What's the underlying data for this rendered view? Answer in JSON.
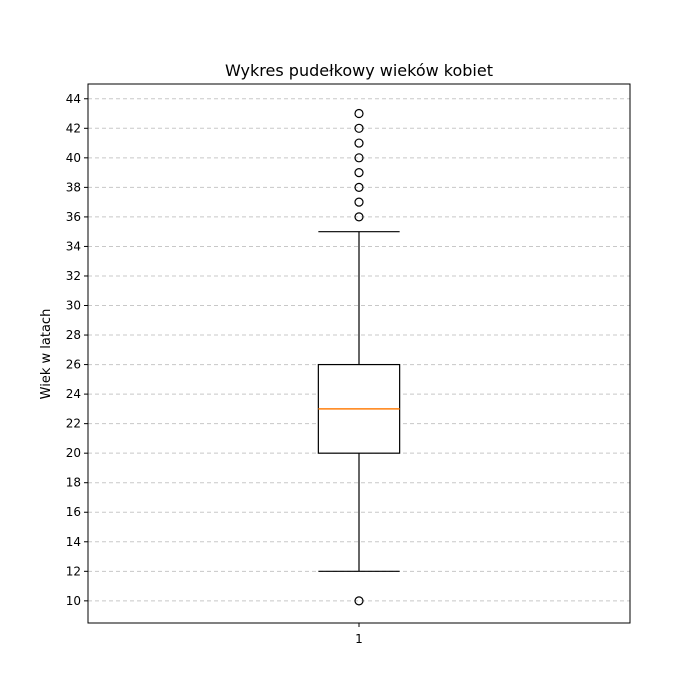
{
  "chart_data": {
    "type": "box",
    "title": "Wykres pudełkowy wieków kobiet",
    "xlabel": "",
    "ylabel": "Wiek w latach",
    "categories": [
      "1"
    ],
    "ylim": [
      8.5,
      45
    ],
    "yticks": [
      10,
      12,
      14,
      16,
      18,
      20,
      22,
      24,
      26,
      28,
      30,
      32,
      34,
      36,
      38,
      40,
      42,
      44
    ],
    "grid": {
      "axis": "y",
      "style": "dashed"
    },
    "boxes": [
      {
        "category": "1",
        "whisker_low": 12,
        "q1": 20,
        "median": 23,
        "q3": 26,
        "whisker_high": 35,
        "outliers": [
          10,
          36,
          37,
          38,
          39,
          40,
          41,
          42,
          43
        ]
      }
    ],
    "colors": {
      "box": "#000000",
      "median": "#ff7f0e",
      "grid": "#c8c8c8",
      "axis": "#000000"
    }
  }
}
